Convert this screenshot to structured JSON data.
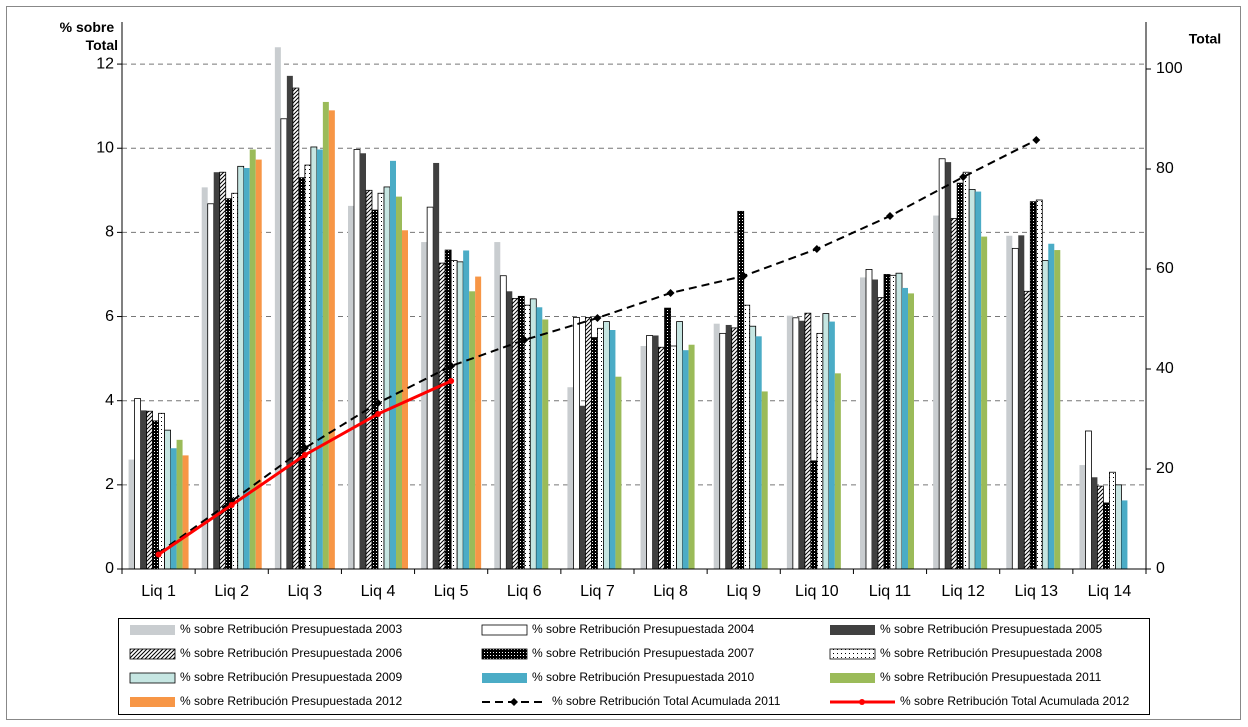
{
  "chart_data": {
    "type": "bar",
    "y_label": [
      "% sobre",
      "Total"
    ],
    "y2_label": "Total",
    "categories": [
      "Liq 1",
      "Liq 2",
      "Liq 3",
      "Liq 4",
      "Liq 5",
      "Liq 6",
      "Liq 7",
      "Liq 8",
      "Liq 9",
      "Liq 10",
      "Liq 11",
      "Liq 12",
      "Liq 13",
      "Liq 14"
    ],
    "ylim": [
      0,
      13
    ],
    "yticks": [
      0,
      2,
      4,
      6,
      8,
      10,
      12
    ],
    "y2lim": [
      0,
      109.4
    ],
    "y2ticks": [
      0,
      20,
      40,
      60,
      80,
      100
    ],
    "grid": true,
    "series": [
      {
        "name": "% sobre Retribución Presupuestada 2003",
        "color": "#c9cdd0",
        "pattern": "none",
        "values": [
          2.6,
          9.07,
          12.4,
          8.63,
          7.77,
          7.77,
          4.32,
          5.3,
          5.83,
          6.02,
          6.93,
          8.4,
          7.92,
          2.47
        ]
      },
      {
        "name": "% sobre Retribución Presupuestada 2004",
        "color": "#ffffff",
        "pattern": "none",
        "values": [
          4.05,
          8.68,
          10.7,
          9.97,
          8.6,
          6.97,
          5.98,
          5.55,
          5.6,
          5.97,
          7.12,
          9.75,
          7.62,
          3.28
        ]
      },
      {
        "name": "% sobre Retribución Presupuestada 2005",
        "color": "#404040",
        "pattern": "none",
        "values": [
          3.77,
          9.43,
          11.72,
          9.88,
          9.65,
          6.6,
          3.88,
          5.55,
          5.8,
          5.9,
          6.88,
          9.67,
          7.93,
          2.18
        ]
      },
      {
        "name": "% sobre Retribución Presupuestada 2006",
        "color": "#ffffff",
        "pattern": "hatch",
        "values": [
          3.75,
          9.43,
          11.43,
          9.0,
          7.27,
          6.43,
          5.98,
          5.27,
          5.73,
          6.08,
          6.45,
          8.33,
          6.6,
          1.97
        ]
      },
      {
        "name": "% sobre Retribución Presupuestada 2007",
        "color": "#000000",
        "pattern": "dots-light",
        "values": [
          3.52,
          8.8,
          9.3,
          8.53,
          7.58,
          6.48,
          5.5,
          6.2,
          8.5,
          2.57,
          7.0,
          9.17,
          8.73,
          1.57
        ]
      },
      {
        "name": "% sobre Retribución Presupuestada 2008",
        "color": "#ffffff",
        "pattern": "dots-dark",
        "values": [
          3.7,
          8.93,
          9.6,
          8.93,
          7.33,
          6.27,
          5.72,
          5.3,
          6.27,
          5.6,
          6.98,
          9.43,
          8.77,
          2.3
        ]
      },
      {
        "name": "% sobre Retribución Presupuestada 2009",
        "color": "#c6e6e2",
        "pattern": "none",
        "values": [
          3.3,
          9.57,
          10.03,
          9.08,
          7.3,
          6.42,
          5.88,
          5.88,
          5.77,
          6.07,
          7.03,
          9.02,
          7.33,
          2.0
        ]
      },
      {
        "name": "% sobre Retribución Presupuestada 2010",
        "color": "#4bacc6",
        "pattern": "none",
        "values": [
          2.87,
          9.53,
          9.97,
          9.7,
          7.57,
          6.22,
          5.68,
          5.2,
          5.53,
          5.88,
          6.68,
          8.97,
          7.73,
          1.63
        ]
      },
      {
        "name": "% sobre Retribución Presupuestada 2011",
        "color": "#9bbb59",
        "pattern": "none",
        "values": [
          3.07,
          9.97,
          11.1,
          8.85,
          6.6,
          5.93,
          4.57,
          5.33,
          4.22,
          4.65,
          6.55,
          7.9,
          7.58,
          null
        ]
      },
      {
        "name": "% sobre Retribución Presupuestada 2012",
        "color": "#f79646",
        "pattern": "none",
        "values": [
          2.7,
          9.73,
          10.9,
          8.05,
          6.95,
          null,
          null,
          null,
          null,
          null,
          null,
          null,
          null,
          null
        ]
      },
      {
        "name": "% sobre Retribución Total Acumulada 2011",
        "type": "line",
        "axis": "y2",
        "color": "#000000",
        "line_style": "dashed",
        "marker": "diamond",
        "values": [
          3.2,
          13.6,
          24.2,
          33.2,
          40.6,
          45.8,
          50.2,
          55.2,
          58.6,
          64.0,
          70.6,
          78.4,
          85.8,
          null
        ]
      },
      {
        "name": "% sobre Retribución Total Acumulada 2012",
        "type": "line",
        "axis": "y2",
        "color": "#ff0000",
        "line_style": "solid",
        "marker": "circle",
        "values": [
          2.9,
          12.8,
          22.8,
          31.0,
          37.6,
          null,
          null,
          null,
          null,
          null,
          null,
          null,
          null,
          null
        ]
      }
    ]
  }
}
